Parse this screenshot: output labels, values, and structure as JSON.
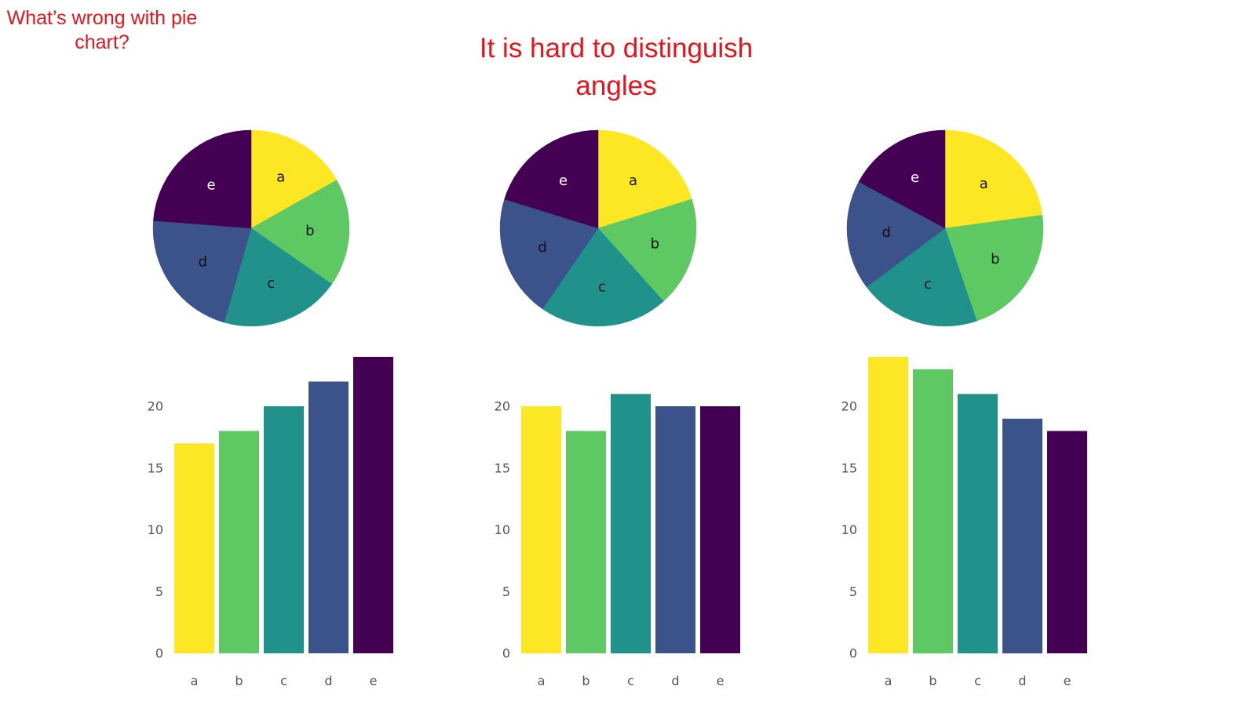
{
  "slide": {
    "question": "What’s wrong with pie chart?",
    "answer": "It is hard to distinguish angles"
  },
  "colors": {
    "a": "#fde725",
    "b": "#5ec962",
    "c": "#21918c",
    "d": "#3b528b",
    "e": "#440154",
    "note_text": "#e8141b",
    "tick_text": "#555555"
  },
  "chart_data": [
    {
      "type": "pie",
      "categories": [
        "a",
        "b",
        "c",
        "d",
        "e"
      ],
      "values": [
        17,
        18,
        20,
        22,
        24
      ],
      "startangle_deg": 90,
      "direction": "clockwise"
    },
    {
      "type": "pie",
      "categories": [
        "a",
        "b",
        "c",
        "d",
        "e"
      ],
      "values": [
        20,
        18,
        21,
        20,
        20
      ],
      "startangle_deg": 90,
      "direction": "clockwise"
    },
    {
      "type": "pie",
      "categories": [
        "a",
        "b",
        "c",
        "d",
        "e"
      ],
      "values": [
        24,
        23,
        21,
        19,
        18
      ],
      "startangle_deg": 90,
      "direction": "clockwise"
    },
    {
      "type": "bar",
      "categories": [
        "a",
        "b",
        "c",
        "d",
        "e"
      ],
      "values": [
        17,
        18,
        20,
        22,
        24
      ],
      "ylim": [
        0,
        24
      ],
      "yticks": [
        0,
        5,
        10,
        15,
        20
      ],
      "grid": false
    },
    {
      "type": "bar",
      "categories": [
        "a",
        "b",
        "c",
        "d",
        "e"
      ],
      "values": [
        20,
        18,
        21,
        20,
        20
      ],
      "ylim": [
        0,
        24
      ],
      "yticks": [
        0,
        5,
        10,
        15,
        20
      ],
      "grid": false
    },
    {
      "type": "bar",
      "categories": [
        "a",
        "b",
        "c",
        "d",
        "e"
      ],
      "values": [
        24,
        23,
        21,
        19,
        18
      ],
      "ylim": [
        0,
        24
      ],
      "yticks": [
        0,
        5,
        10,
        15,
        20
      ],
      "grid": false
    }
  ]
}
